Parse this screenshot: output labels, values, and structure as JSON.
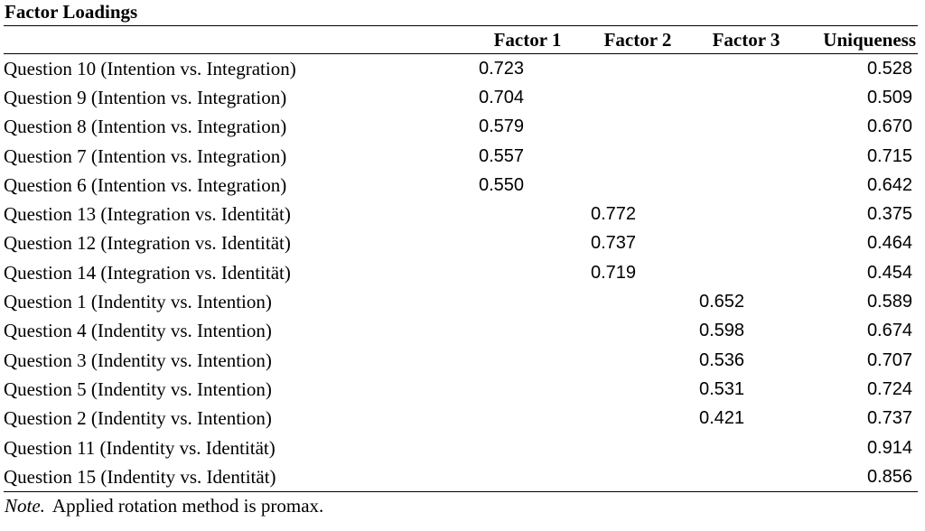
{
  "title": "Factor Loadings",
  "columns": [
    "",
    "Factor 1",
    "Factor 2",
    "Factor 3",
    "Uniqueness"
  ],
  "rows": [
    {
      "label": "Question 10 (Intention vs. Integration)",
      "f1": "0.723",
      "f2": "",
      "f3": "",
      "u": "0.528"
    },
    {
      "label": "Question 9 (Intention vs. Integration)",
      "f1": "0.704",
      "f2": "",
      "f3": "",
      "u": "0.509"
    },
    {
      "label": "Question 8 (Intention vs. Integration)",
      "f1": "0.579",
      "f2": "",
      "f3": "",
      "u": "0.670"
    },
    {
      "label": "Question 7 (Intention vs. Integration)",
      "f1": "0.557",
      "f2": "",
      "f3": "",
      "u": "0.715"
    },
    {
      "label": "Question 6 (Intention vs. Integration)",
      "f1": "0.550",
      "f2": "",
      "f3": "",
      "u": "0.642"
    },
    {
      "label": "Question 13 (Integration vs. Identität)",
      "f1": "",
      "f2": "0.772",
      "f3": "",
      "u": "0.375"
    },
    {
      "label": "Question 12 (Integration vs. Identität)",
      "f1": "",
      "f2": "0.737",
      "f3": "",
      "u": "0.464"
    },
    {
      "label": "Question 14 (Integration vs. Identität)",
      "f1": "",
      "f2": "0.719",
      "f3": "",
      "u": "0.454"
    },
    {
      "label": "Question 1 (Indentity vs. Intention)",
      "f1": "",
      "f2": "",
      "f3": "0.652",
      "u": "0.589"
    },
    {
      "label": "Question 4 (Indentity vs. Intention)",
      "f1": "",
      "f2": "",
      "f3": "0.598",
      "u": "0.674"
    },
    {
      "label": "Question 3 (Indentity vs. Intention)",
      "f1": "",
      "f2": "",
      "f3": "0.536",
      "u": "0.707"
    },
    {
      "label": "Question 5 (Indentity vs. Intention)",
      "f1": "",
      "f2": "",
      "f3": "0.531",
      "u": "0.724"
    },
    {
      "label": "Question 2 (Indentity vs. Intention)",
      "f1": "",
      "f2": "",
      "f3": "0.421",
      "u": "0.737"
    },
    {
      "label": "Question 11 (Indentity vs. Identität)",
      "f1": "",
      "f2": "",
      "f3": "",
      "u": "0.914"
    },
    {
      "label": "Question 15 (Indentity vs. Identität)",
      "f1": "",
      "f2": "",
      "f3": "",
      "u": "0.856"
    }
  ],
  "note": {
    "prefix": "Note.",
    "text": "Applied rotation method is promax."
  }
}
